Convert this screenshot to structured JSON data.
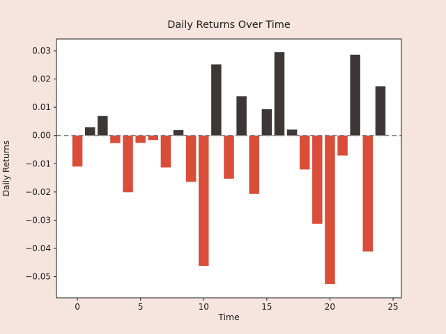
{
  "chart_data": {
    "type": "bar",
    "title": "Daily Returns Over Time",
    "xlabel": "Time",
    "ylabel": "Daily Returns",
    "x": [
      0,
      1,
      2,
      3,
      4,
      5,
      6,
      7,
      8,
      9,
      10,
      11,
      12,
      13,
      14,
      15,
      16,
      17,
      18,
      19,
      20,
      21,
      22,
      23,
      24
    ],
    "values": [
      -0.011,
      0.0029,
      0.0069,
      -0.0027,
      -0.0201,
      -0.0026,
      -0.0016,
      -0.0113,
      0.0019,
      -0.0164,
      -0.0462,
      0.0252,
      -0.0153,
      0.0139,
      -0.0207,
      0.0093,
      0.0295,
      0.0021,
      -0.012,
      -0.0313,
      -0.0526,
      -0.0071,
      0.0286,
      -0.0411,
      0.0174
    ],
    "bar_width": 0.8,
    "xlim": [
      -1.66,
      25.66
    ],
    "ylim": [
      -0.0575,
      0.0342
    ],
    "xticks": [
      0,
      5,
      10,
      15,
      20,
      25
    ],
    "xtick_labels": [
      "0",
      "5",
      "10",
      "15",
      "20",
      "25"
    ],
    "yticks": [
      0.03,
      0.02,
      0.01,
      0.0,
      -0.01,
      -0.02,
      -0.03,
      -0.04,
      -0.05
    ],
    "ytick_labels": [
      "0.03",
      "0.02",
      "0.01",
      "0.00",
      "−0.01",
      "−0.02",
      "−0.03",
      "−0.04",
      "−0.05"
    ],
    "zero_line": {
      "value": 0,
      "style": "dashed",
      "color": "#7f7f7f"
    },
    "grid": false,
    "legend": null,
    "colors": {
      "positive_bar": "#3d3737",
      "negative_bar": "#d94d39",
      "figure_background": "#f6e5df",
      "plot_background": "#ffffff",
      "spine": "#1a1a1a",
      "text": "#1a1a1a"
    }
  }
}
